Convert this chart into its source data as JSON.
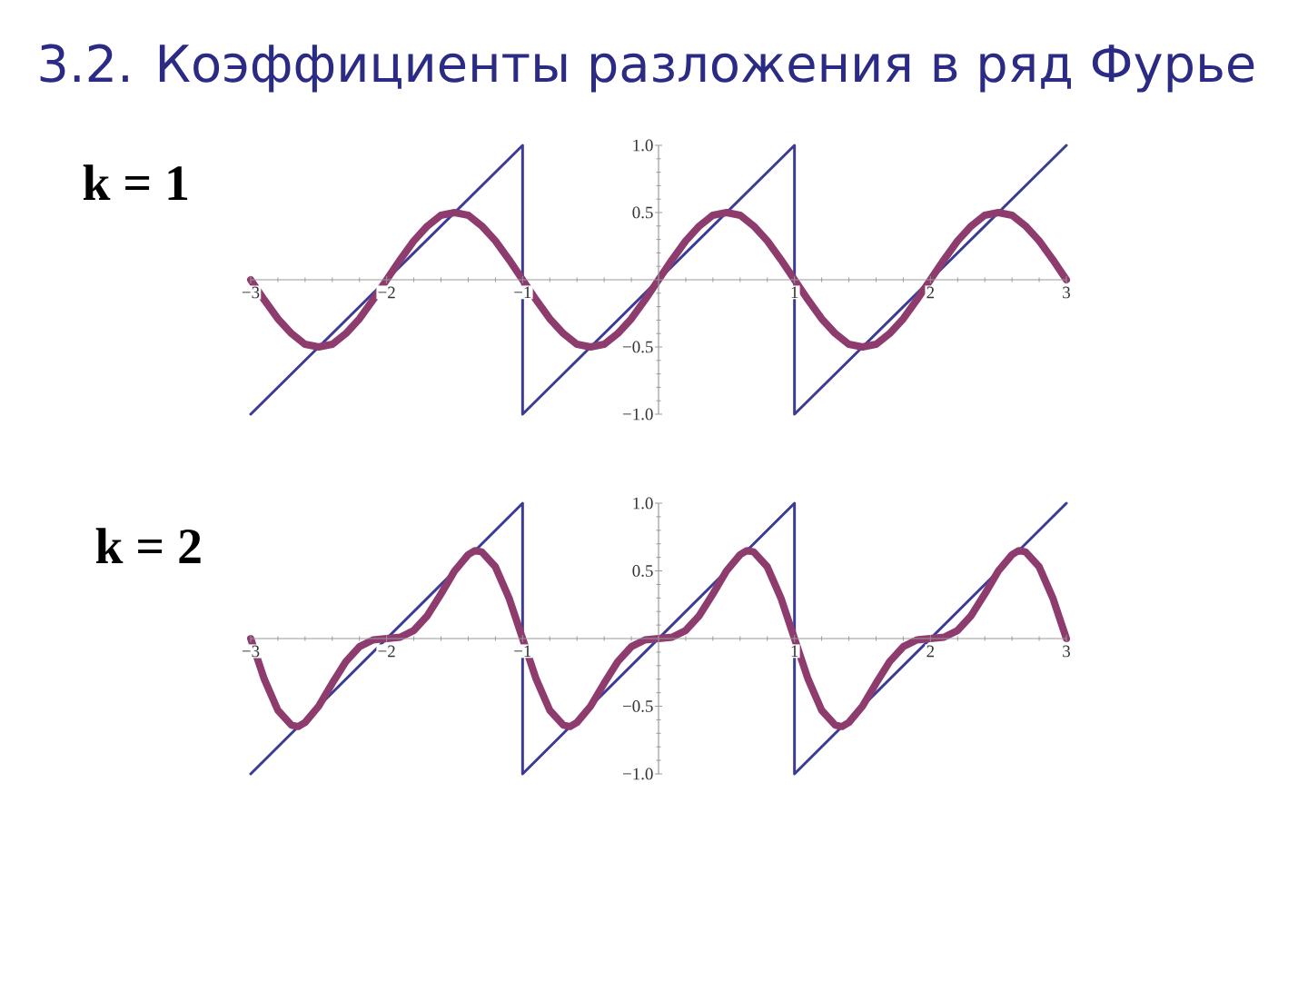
{
  "chart_data": [
    {
      "type": "line",
      "title": "3.2. Коэффициенты разложения в ряд Фурье",
      "subtitle": "k = 1",
      "xlim": [
        -3,
        3
      ],
      "ylim": [
        -1,
        1
      ],
      "xticks": [
        {
          "value": -3,
          "label": "−3"
        },
        {
          "value": -2.8,
          "label": null
        },
        {
          "value": -2.6,
          "label": null
        },
        {
          "value": -2.4,
          "label": null
        },
        {
          "value": -2.2,
          "label": null
        },
        {
          "value": -2,
          "label": "−2"
        },
        {
          "value": -1.8,
          "label": null
        },
        {
          "value": -1.6,
          "label": null
        },
        {
          "value": -1.4,
          "label": null
        },
        {
          "value": -1.2,
          "label": null
        },
        {
          "value": -1,
          "label": "−1"
        },
        {
          "value": -0.8,
          "label": null
        },
        {
          "value": -0.6,
          "label": null
        },
        {
          "value": -0.4,
          "label": null
        },
        {
          "value": -0.2,
          "label": null
        },
        {
          "value": 0.2,
          "label": null
        },
        {
          "value": 0.4,
          "label": null
        },
        {
          "value": 0.6,
          "label": null
        },
        {
          "value": 0.8,
          "label": null
        },
        1,
        {
          "value": 1.2,
          "label": null
        },
        {
          "value": 1.4,
          "label": null
        },
        {
          "value": 1.6,
          "label": null
        },
        {
          "value": 1.8,
          "label": null
        },
        2,
        {
          "value": 2.2,
          "label": null
        },
        {
          "value": 2.4,
          "label": null
        },
        {
          "value": 2.6,
          "label": null
        },
        {
          "value": 2.8,
          "label": null
        },
        3
      ],
      "yticks": [
        {
          "value": -1,
          "label": "−1.0"
        },
        {
          "value": -0.9,
          "label": null
        },
        {
          "value": -0.8,
          "label": null
        },
        {
          "value": -0.7,
          "label": null
        },
        {
          "value": -0.6,
          "label": null
        },
        {
          "value": -0.5,
          "label": "−0.5"
        },
        {
          "value": -0.4,
          "label": null
        },
        {
          "value": -0.3,
          "label": null
        },
        {
          "value": -0.2,
          "label": null
        },
        {
          "value": -0.1,
          "label": null
        },
        {
          "value": 0.1,
          "label": null
        },
        {
          "value": 0.2,
          "label": null
        },
        {
          "value": 0.3,
          "label": null
        },
        {
          "value": 0.4,
          "label": null
        },
        0.5,
        {
          "value": 0.6,
          "label": null
        },
        {
          "value": 0.7,
          "label": null
        },
        {
          "value": 0.8,
          "label": null
        },
        {
          "value": 0.9,
          "label": null
        },
        {
          "value": 1,
          "label": "1.0"
        }
      ],
      "series": [
        {
          "color": "#3c3c96",
          "x": [
            -3,
            -1,
            -1,
            1,
            1,
            3
          ],
          "values": [
            -1,
            1,
            -1,
            1,
            -1,
            1
          ]
        },
        {
          "color": "#8e3b6e",
          "x": [
            -3,
            -2.9,
            -2.8,
            -2.7,
            -2.6,
            -2.5,
            -2.4,
            -2.3,
            -2.2,
            -2.1,
            -2,
            -1.9,
            -1.8,
            -1.7,
            -1.6,
            -1.5,
            -1.4,
            -1.3,
            -1.2,
            -1.1,
            -1,
            -0.9,
            -0.8,
            -0.7,
            -0.6,
            -0.5,
            -0.4,
            -0.3,
            -0.2,
            -0.1,
            0,
            0.1,
            0.2,
            0.3,
            0.4,
            0.5,
            0.6,
            0.7,
            0.8,
            0.9,
            1,
            1.1,
            1.2,
            1.3,
            1.4,
            1.5,
            1.6,
            1.7,
            1.8,
            1.9,
            2,
            2.1,
            2.2,
            2.3,
            2.4,
            2.5,
            2.6,
            2.7,
            2.8,
            2.9,
            3
          ],
          "values": [
            0,
            -0.15,
            -0.29,
            -0.4,
            -0.48,
            -0.5,
            -0.48,
            -0.4,
            -0.29,
            -0.15,
            0,
            0.15,
            0.29,
            0.4,
            0.48,
            0.5,
            0.48,
            0.4,
            0.29,
            0.15,
            0,
            -0.15,
            -0.29,
            -0.4,
            -0.48,
            -0.5,
            -0.48,
            -0.4,
            -0.29,
            -0.15,
            0,
            0.15,
            0.29,
            0.4,
            0.48,
            0.5,
            0.48,
            0.4,
            0.29,
            0.15,
            0,
            -0.15,
            -0.29,
            -0.4,
            -0.48,
            -0.5,
            -0.48,
            -0.4,
            -0.29,
            -0.15,
            0,
            0.15,
            0.29,
            0.4,
            0.48,
            0.5,
            0.48,
            0.4,
            0.29,
            0.15,
            0
          ]
        }
      ]
    },
    {
      "type": "line",
      "subtitle": "k = 2",
      "xlim": [
        -3,
        3
      ],
      "ylim": [
        -1,
        1
      ],
      "xticks": [
        {
          "value": -3,
          "label": "−3"
        },
        {
          "value": -2.8,
          "label": null
        },
        {
          "value": -2.6,
          "label": null
        },
        {
          "value": -2.4,
          "label": null
        },
        {
          "value": -2.2,
          "label": null
        },
        {
          "value": -2,
          "label": "−2"
        },
        {
          "value": -1.8,
          "label": null
        },
        {
          "value": -1.6,
          "label": null
        },
        {
          "value": -1.4,
          "label": null
        },
        {
          "value": -1.2,
          "label": null
        },
        {
          "value": -1,
          "label": "−1"
        },
        {
          "value": -0.8,
          "label": null
        },
        {
          "value": -0.6,
          "label": null
        },
        {
          "value": -0.4,
          "label": null
        },
        {
          "value": -0.2,
          "label": null
        },
        {
          "value": 0.2,
          "label": null
        },
        {
          "value": 0.4,
          "label": null
        },
        {
          "value": 0.6,
          "label": null
        },
        {
          "value": 0.8,
          "label": null
        },
        1,
        {
          "value": 1.2,
          "label": null
        },
        {
          "value": 1.4,
          "label": null
        },
        {
          "value": 1.6,
          "label": null
        },
        {
          "value": 1.8,
          "label": null
        },
        2,
        {
          "value": 2.2,
          "label": null
        },
        {
          "value": 2.4,
          "label": null
        },
        {
          "value": 2.6,
          "label": null
        },
        {
          "value": 2.8,
          "label": null
        },
        3
      ],
      "yticks": [
        {
          "value": -1,
          "label": "−1.0"
        },
        {
          "value": -0.9,
          "label": null
        },
        {
          "value": -0.8,
          "label": null
        },
        {
          "value": -0.7,
          "label": null
        },
        {
          "value": -0.6,
          "label": null
        },
        {
          "value": -0.5,
          "label": "−0.5"
        },
        {
          "value": -0.4,
          "label": null
        },
        {
          "value": -0.3,
          "label": null
        },
        {
          "value": -0.2,
          "label": null
        },
        {
          "value": -0.1,
          "label": null
        },
        {
          "value": 0.1,
          "label": null
        },
        {
          "value": 0.2,
          "label": null
        },
        {
          "value": 0.3,
          "label": null
        },
        {
          "value": 0.4,
          "label": null
        },
        0.5,
        {
          "value": 0.6,
          "label": null
        },
        {
          "value": 0.7,
          "label": null
        },
        {
          "value": 0.8,
          "label": null
        },
        {
          "value": 0.9,
          "label": null
        },
        {
          "value": 1,
          "label": "1.0"
        }
      ],
      "series": [
        {
          "color": "#3c3c96",
          "x": [
            -3,
            -1,
            -1,
            1,
            1,
            3
          ],
          "values": [
            -1,
            1,
            -1,
            1,
            -1,
            1
          ]
        },
        {
          "color": "#8e3b6e",
          "x": [
            -3,
            -2.9,
            -2.8,
            -2.7,
            -2.65,
            -2.6,
            -2.5,
            -2.4,
            -2.3,
            -2.2,
            -2.1,
            -2,
            -1.9,
            -1.8,
            -1.7,
            -1.6,
            -1.5,
            -1.4,
            -1.35,
            -1.3,
            -1.2,
            -1.1,
            -1,
            -0.9,
            -0.8,
            -0.7,
            -0.65,
            -0.6,
            -0.5,
            -0.4,
            -0.3,
            -0.2,
            -0.1,
            0,
            0.1,
            0.2,
            0.3,
            0.4,
            0.5,
            0.6,
            0.65,
            0.7,
            0.8,
            0.9,
            1,
            1.1,
            1.2,
            1.3,
            1.35,
            1.4,
            1.5,
            1.6,
            1.7,
            1.8,
            1.9,
            2,
            2.1,
            2.2,
            2.3,
            2.4,
            2.5,
            2.6,
            2.65,
            2.7,
            2.8,
            2.9,
            3
          ],
          "values": [
            0,
            -0.3,
            -0.53,
            -0.64,
            -0.65,
            -0.62,
            -0.5,
            -0.33,
            -0.17,
            -0.06,
            -0.01,
            0,
            0.01,
            0.06,
            0.17,
            0.33,
            0.5,
            0.62,
            0.65,
            0.64,
            0.53,
            0.3,
            0,
            -0.3,
            -0.53,
            -0.64,
            -0.65,
            -0.62,
            -0.5,
            -0.33,
            -0.17,
            -0.06,
            -0.01,
            0,
            0.01,
            0.06,
            0.17,
            0.33,
            0.5,
            0.62,
            0.65,
            0.64,
            0.53,
            0.3,
            0,
            -0.3,
            -0.53,
            -0.64,
            -0.65,
            -0.62,
            -0.5,
            -0.33,
            -0.17,
            -0.06,
            -0.01,
            0,
            0.01,
            0.06,
            0.17,
            0.33,
            0.5,
            0.62,
            0.65,
            0.64,
            0.53,
            0.3,
            0
          ]
        }
      ]
    }
  ]
}
